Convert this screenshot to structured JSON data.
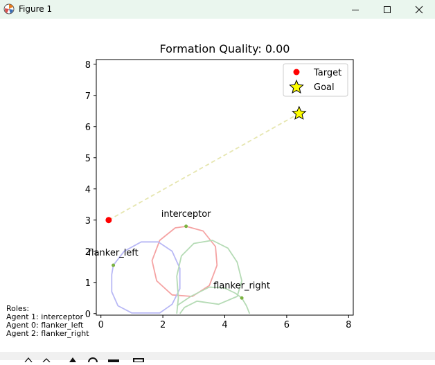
{
  "window": {
    "title": "Figure 1",
    "icons": [
      "matplotlib-icon",
      "minimize-icon",
      "maximize-icon",
      "close-icon"
    ],
    "titlebar_color": "#eaf6ee"
  },
  "roles_panel": {
    "heading": "Roles:",
    "lines": [
      "Agent 1: interceptor",
      "Agent 0: flanker_left",
      "Agent 2: flanker_right"
    ]
  },
  "toolbar": {
    "icons": [
      "home-icon",
      "back-icon",
      "forward-icon",
      "pan-icon",
      "zoom-icon",
      "configure-icon",
      "save-icon"
    ]
  },
  "chart_data": {
    "type": "scatter",
    "title": "Formation Quality: 0.00",
    "xlim": [
      -0.15,
      8.15
    ],
    "ylim": [
      -0.05,
      8.15
    ],
    "xticks": [
      0,
      2,
      4,
      6,
      8
    ],
    "yticks": [
      0,
      1,
      2,
      3,
      4,
      5,
      6,
      7,
      8
    ],
    "grid": false,
    "legend_position": "top-right",
    "legend": [
      {
        "label": "Target",
        "marker": "circle",
        "color": "#ff0000"
      },
      {
        "label": "Goal",
        "marker": "star",
        "color": "#ffff00"
      }
    ],
    "target": {
      "x": 0.25,
      "y": 3.0
    },
    "goal": {
      "x": 6.4,
      "y": 6.42
    },
    "target_goal_line": {
      "style": "dashed",
      "color": "#e6e6b0"
    },
    "agents": [
      {
        "label": "interceptor",
        "x": 2.75,
        "y": 2.8,
        "color": "#f08080"
      },
      {
        "label": "flanker_left",
        "x": 0.4,
        "y": 1.55,
        "color": "#8080f0"
      },
      {
        "label": "flanker_right",
        "x": 4.55,
        "y": 0.5,
        "color": "#80c080"
      }
    ],
    "agent_point_color": "#7cb342",
    "trajectories": [
      {
        "name": "interceptor",
        "color": "#f5a3a3",
        "points": [
          [
            2.75,
            2.8
          ],
          [
            3.3,
            2.65
          ],
          [
            3.7,
            2.15
          ],
          [
            3.75,
            1.55
          ],
          [
            3.5,
            0.9
          ],
          [
            2.95,
            0.55
          ],
          [
            2.3,
            0.6
          ],
          [
            1.8,
            1.05
          ],
          [
            1.65,
            1.7
          ],
          [
            1.9,
            2.35
          ],
          [
            2.4,
            2.75
          ],
          [
            2.75,
            2.8
          ]
        ]
      },
      {
        "name": "flanker_left",
        "color": "#b8b8f5",
        "points": [
          [
            0.4,
            1.55
          ],
          [
            0.75,
            2.0
          ],
          [
            1.3,
            2.3
          ],
          [
            1.85,
            2.3
          ],
          [
            2.3,
            2.0
          ],
          [
            2.55,
            1.45
          ],
          [
            2.55,
            0.8
          ],
          [
            2.3,
            0.3
          ],
          [
            1.9,
            0.02
          ],
          [
            1.0,
            0.02
          ],
          [
            0.55,
            0.25
          ],
          [
            0.35,
            0.7
          ],
          [
            0.35,
            1.25
          ],
          [
            0.4,
            1.55
          ]
        ]
      },
      {
        "name": "flanker_right",
        "color": "#b5dbb5",
        "points": [
          [
            2.45,
            0.0
          ],
          [
            2.5,
            0.5
          ],
          [
            2.45,
            1.2
          ],
          [
            2.6,
            1.85
          ],
          [
            3.0,
            2.25
          ],
          [
            3.6,
            2.35
          ],
          [
            4.1,
            2.1
          ],
          [
            4.4,
            1.65
          ],
          [
            4.55,
            1.05
          ],
          [
            4.4,
            0.55
          ],
          [
            3.8,
            0.3
          ],
          [
            3.1,
            0.4
          ],
          [
            2.7,
            0.2
          ],
          [
            2.55,
            0.0
          ]
        ]
      },
      {
        "name": "flanker_right_inner",
        "color": "#b5dbb5",
        "points": [
          [
            2.45,
            0.25
          ],
          [
            2.9,
            0.55
          ],
          [
            3.5,
            0.85
          ],
          [
            4.0,
            0.82
          ],
          [
            4.35,
            0.65
          ],
          [
            4.55,
            0.5
          ],
          [
            4.7,
            0.25
          ],
          [
            4.8,
            0.0
          ]
        ]
      }
    ]
  }
}
